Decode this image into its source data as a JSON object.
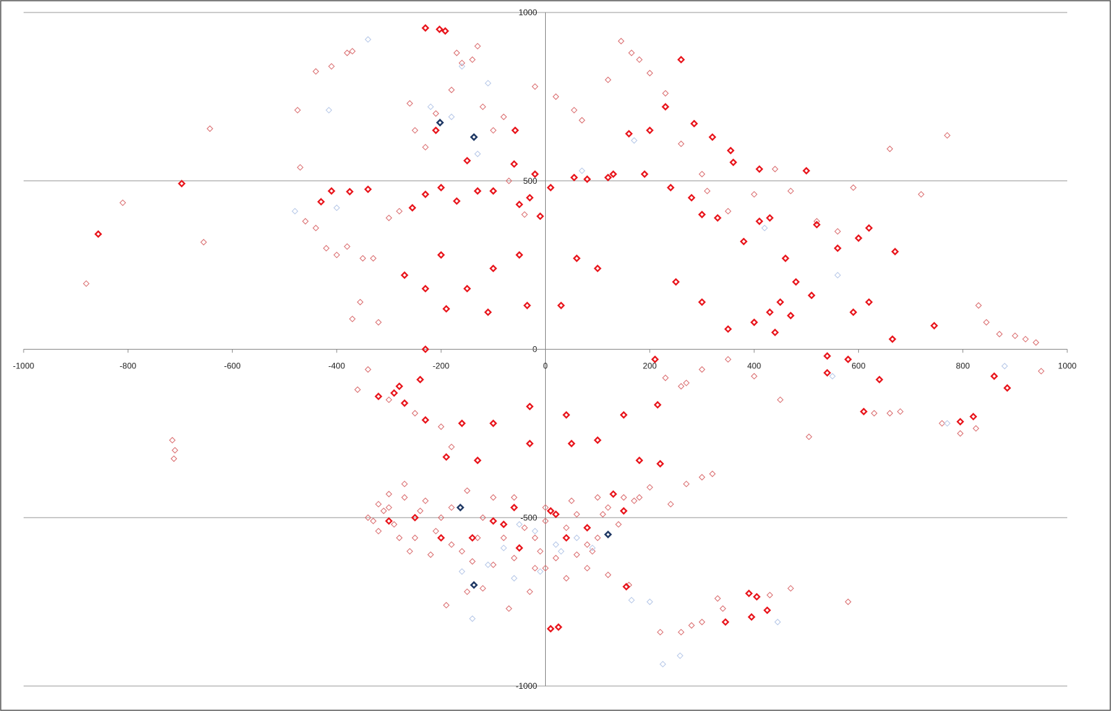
{
  "chart_data": {
    "type": "scatter",
    "xlim": [
      -1000,
      1000
    ],
    "xticks": [
      -1000,
      -800,
      -600,
      -400,
      -200,
      0,
      200,
      400,
      600,
      800,
      1000
    ],
    "ylim": [
      -1000,
      1000
    ],
    "yticks": [
      -1000,
      -500,
      0,
      500,
      1000
    ],
    "grid": true,
    "series": [
      {
        "color": "#d9696b",
        "x": [
          -880,
          -810,
          -643,
          -655,
          -715,
          -710,
          -712,
          -475,
          -440,
          -410,
          -380,
          -370,
          -470,
          -460,
          -440,
          -420,
          -400,
          -380,
          -350,
          -330,
          -370,
          -355,
          -320,
          -300,
          -280,
          -260,
          -250,
          -230,
          -210,
          -180,
          -170,
          -160,
          -140,
          -130,
          -120,
          -100,
          -80,
          -70,
          -40,
          -20,
          20,
          55,
          70,
          120,
          145,
          165,
          180,
          200,
          230,
          260,
          300,
          310,
          350,
          400,
          440,
          470,
          520,
          560,
          590,
          660,
          720,
          770,
          830,
          845,
          870,
          900,
          920,
          940,
          950,
          760,
          795,
          825,
          630,
          660,
          680,
          505,
          450,
          400,
          350,
          300,
          270,
          260,
          230,
          300,
          320,
          270,
          240,
          170,
          200,
          160,
          220,
          260,
          280,
          300,
          340,
          330,
          430,
          580,
          470,
          -190,
          -150,
          -120,
          -70,
          -30,
          0,
          40,
          80,
          120,
          -340,
          -360,
          -300,
          -250,
          -200,
          -180,
          -270,
          -300,
          -320,
          -340,
          -320,
          -280,
          -260,
          -220,
          -180,
          -140,
          -100,
          -60,
          -20,
          20,
          60,
          90,
          100,
          140,
          180,
          120,
          60,
          0,
          -40,
          -120,
          -180,
          -230,
          -270,
          -310,
          -290,
          -250,
          -210,
          -160,
          -80,
          -20,
          40,
          80,
          -100,
          -150,
          -60,
          0,
          50,
          100,
          150,
          110,
          -240,
          -200,
          -300,
          -330,
          -10,
          -130
        ],
        "values": [
          195,
          435,
          655,
          318,
          -270,
          -300,
          -325,
          710,
          825,
          840,
          880,
          885,
          540,
          380,
          360,
          300,
          280,
          305,
          270,
          270,
          90,
          140,
          80,
          390,
          410,
          730,
          650,
          600,
          700,
          770,
          880,
          850,
          860,
          900,
          720,
          650,
          690,
          500,
          400,
          780,
          750,
          710,
          680,
          800,
          915,
          880,
          860,
          820,
          760,
          610,
          520,
          470,
          410,
          460,
          535,
          470,
          380,
          350,
          480,
          595,
          460,
          635,
          130,
          80,
          45,
          40,
          30,
          20,
          -65,
          -220,
          -250,
          -235,
          -190,
          -190,
          -185,
          -260,
          -150,
          -80,
          -30,
          -60,
          -100,
          -110,
          -85,
          -380,
          -370,
          -400,
          -460,
          -450,
          -410,
          -700,
          -840,
          -840,
          -820,
          -810,
          -770,
          -740,
          -730,
          -750,
          -710,
          -760,
          -720,
          -710,
          -770,
          -720,
          -650,
          -680,
          -650,
          -670,
          -60,
          -120,
          -150,
          -190,
          -230,
          -290,
          -400,
          -430,
          -460,
          -500,
          -540,
          -560,
          -600,
          -610,
          -580,
          -630,
          -640,
          -620,
          -650,
          -620,
          -610,
          -600,
          -560,
          -520,
          -440,
          -470,
          -490,
          -510,
          -530,
          -500,
          -470,
          -450,
          -440,
          -480,
          -520,
          -560,
          -540,
          -600,
          -560,
          -560,
          -530,
          -580,
          -440,
          -420,
          -440,
          -470,
          -450,
          -440,
          -440,
          -490,
          -480,
          -500,
          -470,
          -510,
          -600,
          -560
        ]
      },
      {
        "color": "#b4c6e7",
        "x": [
          -340,
          -415,
          -160,
          -110,
          -220,
          -180,
          -480,
          -400,
          -130,
          70,
          170,
          420,
          560,
          550,
          880,
          770,
          165,
          200,
          258,
          225,
          445,
          -140,
          -160,
          -50,
          -20,
          20,
          60,
          90,
          -80,
          -110,
          -10,
          -60,
          30
        ],
        "values": [
          920,
          710,
          840,
          790,
          720,
          690,
          410,
          420,
          580,
          530,
          620,
          360,
          220,
          -80,
          -50,
          -220,
          -745,
          -750,
          -910,
          -935,
          -810,
          -800,
          -660,
          -520,
          -540,
          -580,
          -560,
          -590,
          -590,
          -640,
          -660,
          -680,
          -600
        ]
      },
      {
        "color": "#e8131a",
        "x": [
          -857,
          -697,
          -230,
          -203,
          -192,
          -58,
          -430,
          -410,
          -375,
          -340,
          -255,
          -230,
          -200,
          -170,
          -130,
          -100,
          -60,
          -30,
          -10,
          -50,
          -100,
          -150,
          -200,
          -230,
          -270,
          -190,
          -110,
          -35,
          30,
          60,
          100,
          130,
          160,
          200,
          230,
          260,
          285,
          320,
          355,
          360,
          410,
          500,
          430,
          460,
          480,
          520,
          560,
          600,
          620,
          670,
          745,
          665,
          640,
          610,
          540,
          580,
          400,
          440,
          350,
          300,
          250,
          210,
          215,
          150,
          40,
          -30,
          -100,
          -160,
          -230,
          -270,
          -290,
          -240,
          -320,
          -230,
          -280,
          -130,
          -190,
          -30,
          50,
          100,
          180,
          220,
          130,
          10,
          -60,
          -100,
          -200,
          -250,
          -300,
          -140,
          -50,
          40,
          80,
          150,
          -80,
          20,
          10,
          25,
          390,
          405,
          425,
          395,
          345,
          155,
          820,
          795,
          860,
          885,
          -210,
          -150,
          -50,
          -20,
          10,
          55,
          80,
          120,
          190,
          240,
          280,
          300,
          330,
          380,
          410,
          430,
          450,
          470,
          510,
          540,
          590,
          620
        ],
        "values": [
          342,
          492,
          954,
          950,
          945,
          650,
          438,
          470,
          468,
          475,
          420,
          460,
          480,
          440,
          470,
          470,
          550,
          450,
          395,
          280,
          240,
          180,
          280,
          180,
          220,
          120,
          110,
          130,
          130,
          270,
          240,
          520,
          640,
          650,
          720,
          860,
          670,
          630,
          590,
          555,
          535,
          530,
          390,
          270,
          200,
          370,
          300,
          330,
          360,
          290,
          70,
          30,
          -90,
          -185,
          -70,
          -30,
          80,
          50,
          60,
          140,
          200,
          -30,
          -165,
          -195,
          -195,
          -170,
          -220,
          -220,
          -210,
          -160,
          -130,
          -90,
          -140,
          0,
          -110,
          -330,
          -320,
          -280,
          -280,
          -270,
          -330,
          -340,
          -430,
          -480,
          -470,
          -510,
          -560,
          -500,
          -510,
          -560,
          -590,
          -560,
          -530,
          -480,
          -520,
          -490,
          -830,
          -825,
          -725,
          -735,
          -775,
          -795,
          -810,
          -705,
          -200,
          -215,
          -80,
          -115,
          650,
          560,
          430,
          520,
          480,
          510,
          505,
          510,
          520,
          480,
          450,
          400,
          390,
          320,
          380,
          110,
          140,
          100,
          160,
          -20,
          110,
          140
        ]
      },
      {
        "color": "#1f3864",
        "x": [
          -202,
          -137,
          -163,
          120,
          -137
        ],
        "values": [
          673,
          630,
          -470,
          -550,
          -700
        ]
      }
    ]
  }
}
